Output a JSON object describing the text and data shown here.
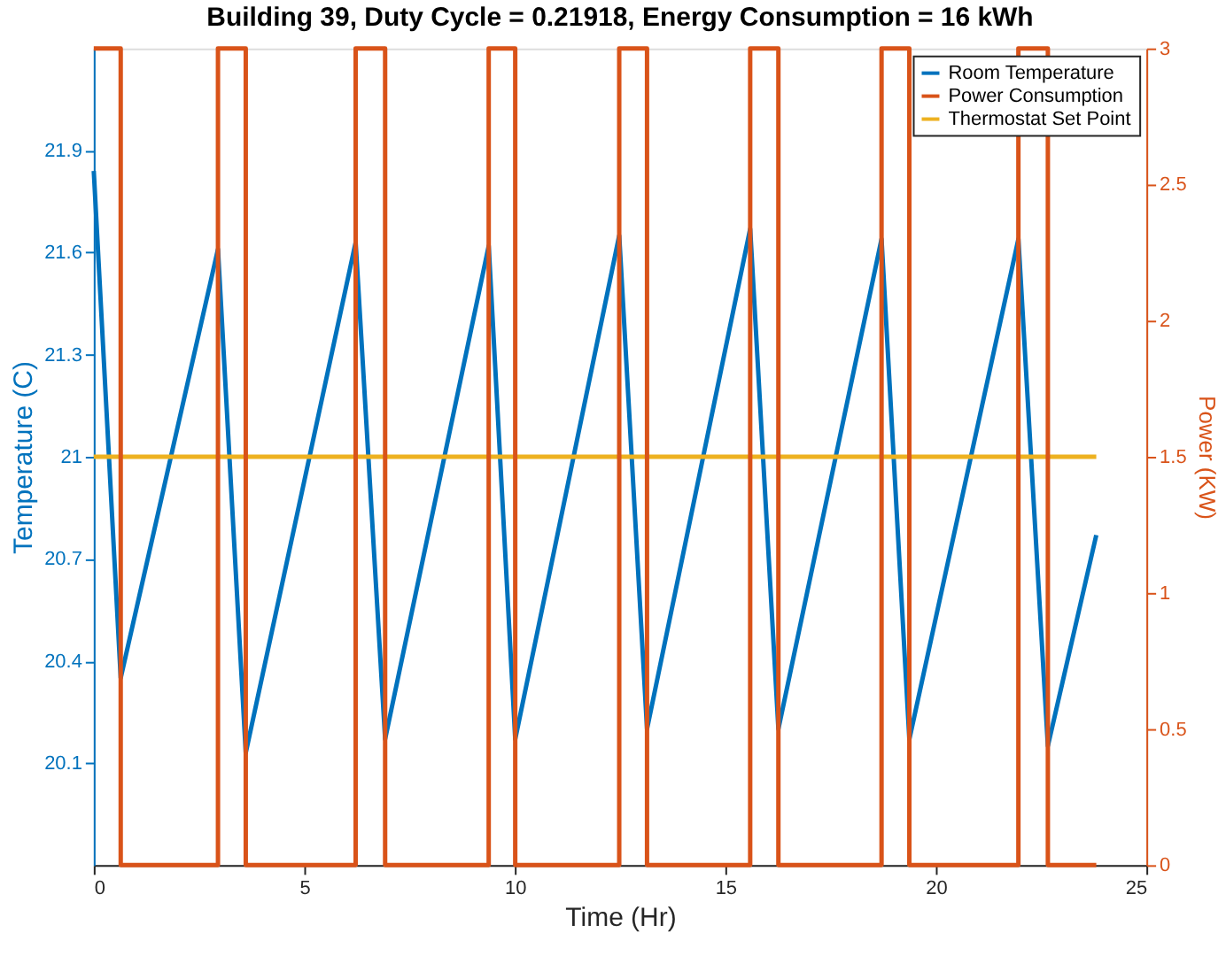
{
  "chart_data": {
    "type": "line",
    "title": "Building 39, Duty Cycle = 0.21918, Energy Consumption = 16 kWh",
    "xlabel": "Time (Hr)",
    "ylabel": "Temperature (C)",
    "y2label": "Power (KW)",
    "xlim": [
      0,
      25
    ],
    "xticks": [
      0,
      5,
      10,
      15,
      20,
      25
    ],
    "ylim": [
      19.8,
      22.2
    ],
    "yticks": [
      20.1,
      20.4,
      20.7,
      21,
      21.3,
      21.6,
      21.9
    ],
    "y2lim": [
      0,
      3
    ],
    "y2ticks": [
      0,
      0.5,
      1,
      1.5,
      2,
      2.5,
      3
    ],
    "grid": false,
    "legend": "top right",
    "series": [
      {
        "name": "Room Temperature",
        "type": "line",
        "axis": "y",
        "color": "#0072bd",
        "x": [
          0,
          0.64,
          2.95,
          3.61,
          6.22,
          6.92,
          9.38,
          10.01,
          12.48,
          13.14,
          15.59,
          16.26,
          18.71,
          19.37,
          21.96,
          22.66,
          23.81
        ],
        "values": [
          21.84,
          20.35,
          21.61,
          20.13,
          21.63,
          20.17,
          21.62,
          20.17,
          21.65,
          20.2,
          21.67,
          20.2,
          21.64,
          20.17,
          21.64,
          20.15,
          20.77
        ]
      },
      {
        "name": "Power Consumption",
        "type": "step",
        "axis": "y2",
        "color": "#d95319",
        "x": [
          0,
          0.64,
          2.95,
          3.61,
          6.22,
          6.92,
          9.38,
          10.01,
          12.48,
          13.14,
          15.59,
          16.26,
          18.71,
          19.37,
          21.96,
          22.66,
          23.81
        ],
        "values": [
          3,
          0,
          3,
          0,
          3,
          0,
          3,
          0,
          3,
          0,
          3,
          0,
          3,
          0,
          3,
          0,
          0
        ]
      },
      {
        "name": "Thermostat Set Point",
        "type": "line",
        "axis": "y",
        "color": "#edb120",
        "x": [
          0,
          23.81
        ],
        "values": [
          21,
          21
        ]
      }
    ]
  }
}
